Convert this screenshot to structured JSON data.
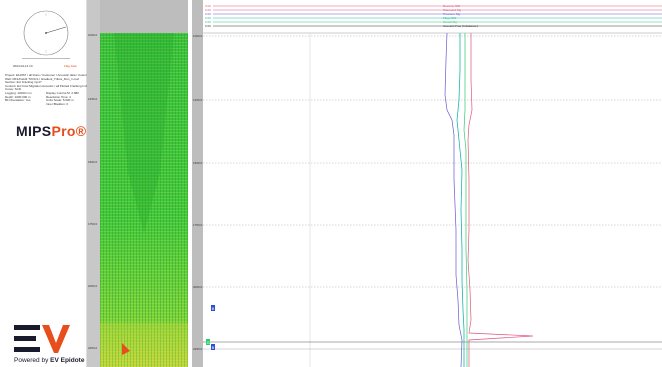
{
  "colors": {
    "accent": "#e84e1b",
    "brand_dark": "#1a1a2e",
    "curve_pink": "#e0567a",
    "curve_purple": "#6a5acd",
    "curve_teal": "#17b6a8",
    "curve_green": "#2ecc71",
    "marker_blue": "#2a4fd0",
    "heat_green": "#37c23a",
    "heat_yellow": "#b9e23a"
  },
  "left_panel": {
    "compass_icon": "compass-dial-icon",
    "date_label": "2024-04-12 13",
    "flag_label": "Flag data",
    "info_lines": [
      "Project: E12067 / all Runs / Customer / Acoustic data / Customer 1",
      "Well: MF1/Field1 TOOLS / Gradient_Tribes_Run_1.mwt",
      "Section: Ext Fracking mp17",
      "Content: Ext Frac Migration Acoustic / all Plotted Fracking Imbal",
      "Curve: SCD",
      "Logging:  12000 mm",
      "Depth:  1000.000 m",
      "Bit Orientation: Yes"
    ],
    "info_right": [
      "Display Control M: 2.980",
      "Resolution Time: 4",
      "Units Scale: 5.000 m",
      "Inner Bladden: 0"
    ],
    "brand_prefix": "MIPS",
    "brand_suffix": "Pro",
    "brand_mark": "®",
    "logo_icon": "ev-logo-icon",
    "powered_label": "Powered by",
    "powered_brand": "EV Epidote"
  },
  "track_depths": [
    "1000.0",
    "1250.0",
    "1500.0",
    "1750.0",
    "2000.0",
    "2250.0"
  ],
  "log_depths": [
    "1000.0",
    "1250.0",
    "1500.0",
    "1750.0",
    "2000.0",
    "2250.0"
  ],
  "header_curves": [
    {
      "scale": "0.00",
      "name": "Reverse SIG",
      "color": "#e0567a"
    },
    {
      "scale": "0.00",
      "name": "Saturated Sig",
      "color": "#e0567a"
    },
    {
      "scale": "0.00",
      "name": "Pressure Sig",
      "color": "#6a5acd"
    },
    {
      "scale": "0.00",
      "name": "Flags SIG",
      "color": "#17b6a8"
    },
    {
      "scale": "0.00",
      "name": "Cumul Sig",
      "color": "#2ecc71"
    },
    {
      "scale": "0.00",
      "name": "Acoustic Frac (Imbalance)",
      "color": "#333333"
    }
  ],
  "markers": [
    {
      "label": "B",
      "track": "log"
    },
    {
      "label": "B",
      "track": "log"
    },
    {
      "label": "G",
      "track": "log"
    }
  ]
}
